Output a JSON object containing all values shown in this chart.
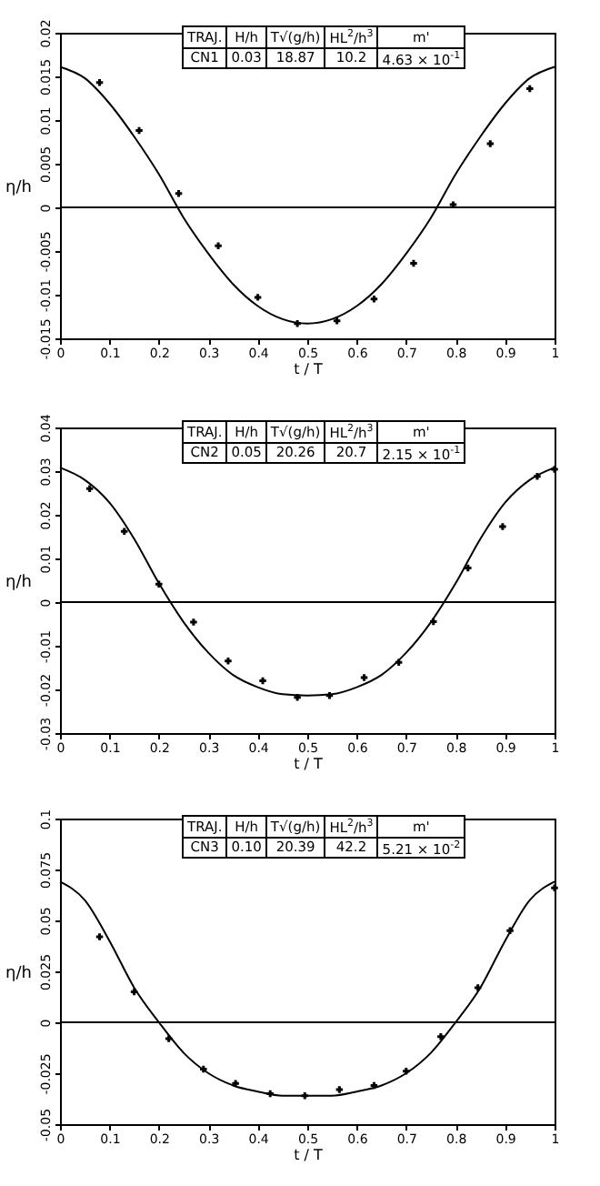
{
  "chart_data": [
    {
      "type": "line",
      "xlabel": "t / T",
      "ylabel": "η/h",
      "xlim": [
        0,
        1
      ],
      "xticks": [
        0,
        0.1,
        0.2,
        0.3,
        0.4,
        0.5,
        0.6,
        0.7,
        0.8,
        0.9,
        1
      ],
      "ylim": [
        -0.015,
        0.02
      ],
      "yticks": [
        -0.015,
        -0.01,
        -0.005,
        0,
        0.005,
        0.01,
        0.015,
        0.02
      ],
      "annotations": [
        "TRAJ.",
        "H/h",
        "T√(g/h)",
        "HL$^{2}$/h$^{3}$",
        "m'",
        "CN1",
        "0.03",
        "18.87",
        "10.2",
        "4.63 × 10$^{-1}$"
      ],
      "ref_lines": [
        {
          "axis": "y",
          "value": 0
        }
      ],
      "series": [
        {
          "type": "line",
          "marker": "none",
          "color": "#000000",
          "x": [
            0,
            0.05,
            0.1,
            0.15,
            0.2,
            0.25,
            0.3,
            0.35,
            0.4,
            0.45,
            0.5,
            0.55,
            0.6,
            0.65,
            0.7,
            0.75,
            0.8,
            0.85,
            0.9,
            0.95,
            1
          ],
          "values": [
            0.0161,
            0.0148,
            0.0119,
            0.0081,
            0.0038,
            -0.0012,
            -0.0053,
            -0.0088,
            -0.0113,
            -0.0128,
            -0.0133,
            -0.0128,
            -0.0113,
            -0.0088,
            -0.0053,
            -0.0012,
            0.0038,
            0.0081,
            0.0119,
            0.0148,
            0.0161
          ]
        },
        {
          "type": "scatter",
          "marker": "cross",
          "color": "#000000",
          "x": [
            0.08,
            0.16,
            0.24,
            0.32,
            0.4,
            0.48,
            0.56,
            0.635,
            0.715,
            0.795,
            0.87,
            0.95
          ],
          "values": [
            0.0143,
            0.0088,
            0.0016,
            -0.0044,
            -0.0103,
            -0.0133,
            -0.013,
            -0.0105,
            -0.0064,
            0.0003,
            0.0073,
            0.0136
          ]
        }
      ]
    },
    {
      "type": "line",
      "xlabel": "t / T",
      "ylabel": "η/h",
      "xlim": [
        0,
        1
      ],
      "xticks": [
        0,
        0.1,
        0.2,
        0.3,
        0.4,
        0.5,
        0.6,
        0.7,
        0.8,
        0.9,
        1
      ],
      "ylim": [
        -0.03,
        0.04
      ],
      "yticks": [
        -0.03,
        -0.02,
        -0.01,
        0,
        0.01,
        0.02,
        0.03,
        0.04
      ],
      "annotations": [
        "TRAJ.",
        "H/h",
        "T√(g/h)",
        "HL$^{2}$/h$^{3}$",
        "m'",
        "CN2",
        "0.05",
        "20.26",
        "20.7",
        "2.15 × 10$^{-1}$"
      ],
      "ref_lines": [
        {
          "axis": "y",
          "value": 0
        }
      ],
      "series": [
        {
          "type": "line",
          "marker": "none",
          "color": "#000000",
          "x": [
            0,
            0.05,
            0.1,
            0.15,
            0.2,
            0.25,
            0.3,
            0.35,
            0.4,
            0.45,
            0.5,
            0.55,
            0.6,
            0.65,
            0.7,
            0.75,
            0.8,
            0.85,
            0.9,
            0.95,
            1
          ],
          "values": [
            0.0308,
            0.028,
            0.0228,
            0.0145,
            0.0043,
            -0.0046,
            -0.0116,
            -0.0167,
            -0.0195,
            -0.0211,
            -0.0214,
            -0.0211,
            -0.0195,
            -0.0167,
            -0.0116,
            -0.0046,
            0.0043,
            0.0145,
            0.0228,
            0.028,
            0.0308
          ]
        },
        {
          "type": "scatter",
          "marker": "cross",
          "color": "#000000",
          "x": [
            0.06,
            0.13,
            0.2,
            0.27,
            0.34,
            0.41,
            0.48,
            0.545,
            0.615,
            0.685,
            0.755,
            0.825,
            0.895,
            0.965,
            1
          ],
          "values": [
            0.026,
            0.0162,
            0.0041,
            -0.0046,
            -0.0135,
            -0.018,
            -0.0218,
            -0.0214,
            -0.0173,
            -0.0138,
            -0.0045,
            0.0078,
            0.0173,
            0.0288,
            0.0304
          ]
        }
      ]
    },
    {
      "type": "line",
      "xlabel": "t / T",
      "ylabel": "η/h",
      "xlim": [
        0,
        1
      ],
      "xticks": [
        0,
        0.1,
        0.2,
        0.3,
        0.4,
        0.5,
        0.6,
        0.7,
        0.8,
        0.9,
        1
      ],
      "ylim": [
        -0.05,
        0.1
      ],
      "yticks": [
        -0.05,
        -0.025,
        0,
        0.025,
        0.05,
        0.075,
        0.1
      ],
      "annotations": [
        "TRAJ.",
        "H/h",
        "T√(g/h)",
        "HL$^{2}$/h$^{3}$",
        "m'",
        "CN3",
        "0.10",
        "20.39",
        "42.2",
        "5.21 × 10$^{-2}$"
      ],
      "ref_lines": [
        {
          "axis": "y",
          "value": 0
        }
      ],
      "series": [
        {
          "type": "line",
          "marker": "none",
          "color": "#000000",
          "x": [
            0,
            0.05,
            0.1,
            0.15,
            0.2,
            0.25,
            0.3,
            0.35,
            0.4,
            0.45,
            0.5,
            0.55,
            0.6,
            0.65,
            0.7,
            0.75,
            0.8,
            0.85,
            0.9,
            0.95,
            1
          ],
          "values": [
            0.069,
            0.06,
            0.04,
            0.017,
            0,
            -0.015,
            -0.025,
            -0.031,
            -0.034,
            -0.036,
            -0.036,
            -0.036,
            -0.034,
            -0.031,
            -0.025,
            -0.015,
            0,
            0.017,
            0.04,
            0.06,
            0.069
          ]
        },
        {
          "type": "scatter",
          "marker": "cross",
          "color": "#000000",
          "x": [
            0.08,
            0.15,
            0.22,
            0.29,
            0.355,
            0.425,
            0.495,
            0.565,
            0.635,
            0.7,
            0.77,
            0.845,
            0.91,
            1
          ],
          "values": [
            0.042,
            0.015,
            -0.008,
            -0.023,
            -0.03,
            -0.035,
            -0.036,
            -0.033,
            -0.031,
            -0.024,
            -0.007,
            0.017,
            0.045,
            0.066
          ]
        }
      ]
    }
  ]
}
